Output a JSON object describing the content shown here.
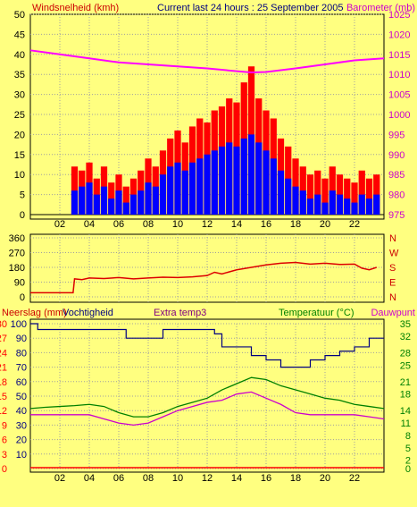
{
  "header": {
    "left_label": "Windsnelheid (kmh)",
    "center_label": "Current last 24 hours : 25 September 2005",
    "right_label": "Barometer (mb)"
  },
  "direction_labels": [
    "N",
    "W",
    "S",
    "E",
    "N"
  ],
  "bottom_header": {
    "precip_label": "Neerslag (mm)",
    "humidity_label": "Vochtigheid",
    "extra_label": "Extra temp3",
    "temp_label": "Temperatuur (°C)",
    "dew_label": "Dauwpunt"
  },
  "colors": {
    "background": "#FFFF80",
    "grid": "#A0A0A0",
    "wind_gust": "#FF0000",
    "wind_avg": "#0000FF",
    "barometer": "#FF00FF",
    "direction": "#DD0000",
    "humidity": "#000080",
    "temperature": "#008000",
    "dewpoint": "#CC00CC",
    "precip": "#FF0000",
    "left_title": "#CC0000",
    "right_title": "#CC00CC",
    "temp_title": "#008000",
    "extra_title": "#800080"
  },
  "chart_data": [
    {
      "type": "bar",
      "name": "wind",
      "x_ticks": [
        "02",
        "04",
        "06",
        "08",
        "10",
        "12",
        "14",
        "16",
        "18",
        "20",
        "22"
      ],
      "y_left_ticks": [
        "0",
        "5",
        "10",
        "15",
        "20",
        "25",
        "30",
        "35",
        "40",
        "45",
        "50"
      ],
      "y_right_ticks": [
        "975",
        "980",
        "985",
        "990",
        "995",
        "1000",
        "1005",
        "1010",
        "1015",
        "1020",
        "1025"
      ],
      "ylim_left": [
        0,
        50
      ],
      "ylim_right": [
        975,
        1025
      ],
      "xlim": [
        0,
        24
      ],
      "series": [
        {
          "name": "gust",
          "x": [
            3.0,
            3.5,
            4.0,
            4.5,
            5.0,
            5.5,
            6.0,
            6.5,
            7.0,
            7.5,
            8.0,
            8.5,
            9.0,
            9.5,
            10.0,
            10.5,
            11.0,
            11.5,
            12.0,
            12.5,
            13.0,
            13.5,
            14.0,
            14.5,
            15.0,
            15.5,
            16.0,
            16.5,
            17.0,
            17.5,
            18.0,
            18.5,
            19.0,
            19.5,
            20.0,
            20.5,
            21.0,
            21.5,
            22.0,
            22.5,
            23.0,
            23.5
          ],
          "values": [
            12,
            11,
            13,
            9,
            12,
            8,
            10,
            7,
            9,
            11,
            14,
            12,
            16,
            19,
            21,
            18,
            22,
            24,
            23,
            26,
            27,
            29,
            28,
            33,
            37,
            29,
            26,
            24,
            19,
            17,
            14,
            12,
            10,
            11,
            9,
            12,
            10,
            9,
            8,
            11,
            9,
            10
          ]
        },
        {
          "name": "avg",
          "x": [
            3.0,
            3.5,
            4.0,
            4.5,
            5.0,
            5.5,
            6.0,
            6.5,
            7.0,
            7.5,
            8.0,
            8.5,
            9.0,
            9.5,
            10.0,
            10.5,
            11.0,
            11.5,
            12.0,
            12.5,
            13.0,
            13.5,
            14.0,
            14.5,
            15.0,
            15.5,
            16.0,
            16.5,
            17.0,
            17.5,
            18.0,
            18.5,
            19.0,
            19.5,
            20.0,
            20.5,
            21.0,
            21.5,
            22.0,
            22.5,
            23.0,
            23.5
          ],
          "values": [
            6,
            7,
            8,
            5,
            7,
            4,
            6,
            3,
            5,
            6,
            8,
            7,
            10,
            12,
            13,
            11,
            13,
            14,
            15,
            16,
            17,
            18,
            17,
            19,
            20,
            18,
            16,
            14,
            11,
            9,
            7,
            6,
            4,
            5,
            3,
            6,
            5,
            4,
            3,
            5,
            4,
            5
          ]
        }
      ],
      "barometer": {
        "x": [
          0,
          2,
          4,
          6,
          8,
          10,
          12,
          14,
          15,
          16,
          18,
          20,
          22,
          24
        ],
        "values": [
          1016,
          1015,
          1014,
          1013,
          1012.5,
          1012,
          1011.5,
          1010.8,
          1010.5,
          1010.6,
          1011.5,
          1012.5,
          1013.5,
          1014
        ]
      }
    },
    {
      "type": "line",
      "name": "direction",
      "x_ticks": [],
      "y_ticks": [
        "0",
        "90",
        "180",
        "270",
        "360"
      ],
      "ylim": [
        0,
        360
      ],
      "xlim": [
        0,
        24
      ],
      "series": [
        {
          "name": "direction",
          "x": [
            0,
            2.9,
            3.0,
            3.5,
            4,
            5,
            6,
            7,
            8,
            9,
            10,
            11,
            12,
            12.5,
            13,
            14,
            15,
            16,
            17,
            18,
            19,
            20,
            21,
            22,
            22.5,
            23,
            23.5
          ],
          "values": [
            25,
            25,
            110,
            105,
            115,
            112,
            118,
            110,
            115,
            120,
            118,
            122,
            130,
            150,
            140,
            165,
            180,
            195,
            205,
            210,
            200,
            205,
            198,
            200,
            175,
            165,
            180
          ]
        }
      ]
    },
    {
      "type": "line",
      "name": "temperature-humidity",
      "x_ticks": [
        "02",
        "04",
        "06",
        "08",
        "10",
        "12",
        "14",
        "16",
        "18",
        "20",
        "22"
      ],
      "y_left_ticks": [
        "0",
        "3",
        "6",
        "9",
        "12",
        "15",
        "18",
        "21",
        "24",
        "27",
        "30"
      ],
      "y_humidity_ticks": [
        "10",
        "20",
        "30",
        "40",
        "50",
        "60",
        "70",
        "80",
        "90",
        "100"
      ],
      "y_right_ticks": [
        "0",
        "2",
        "5",
        "8",
        "11",
        "14",
        "18",
        "21",
        "25",
        "28",
        "32",
        "35"
      ],
      "ylim_humidity": [
        0,
        100
      ],
      "ylim_temp": [
        0,
        35
      ],
      "xlim": [
        0,
        24
      ],
      "series": [
        {
          "name": "humidity",
          "x": [
            0,
            0.5,
            2,
            3.5,
            5,
            6,
            6.5,
            8,
            9,
            10,
            10.5,
            11,
            12,
            12.5,
            13,
            14,
            15,
            16,
            17,
            18,
            19,
            20,
            21,
            22,
            23,
            24
          ],
          "values": [
            100,
            96,
            96,
            96,
            96,
            96,
            90,
            90,
            96,
            96,
            96,
            96,
            96,
            93,
            84,
            84,
            78,
            75,
            70,
            70,
            75,
            78,
            81,
            84,
            90,
            90
          ]
        },
        {
          "name": "temperature",
          "x": [
            0,
            1,
            2,
            3,
            4,
            5,
            6,
            7,
            8,
            9,
            10,
            11,
            12,
            13,
            14,
            15,
            16,
            17,
            18,
            19,
            20,
            21,
            22,
            23,
            24
          ],
          "values": [
            14.5,
            14.8,
            15.0,
            15.2,
            15.5,
            15.0,
            13.5,
            12.5,
            12.5,
            13.5,
            15.0,
            16.0,
            17.0,
            19.0,
            20.5,
            22.0,
            21.5,
            20.0,
            19.0,
            18.0,
            17.0,
            16.5,
            15.5,
            15.0,
            14.5
          ]
        },
        {
          "name": "dewpoint",
          "x": [
            0,
            1,
            2,
            3,
            4,
            5,
            6,
            7,
            8,
            9,
            10,
            11,
            12,
            13,
            14,
            15,
            16,
            17,
            18,
            19,
            20,
            21,
            22,
            23,
            24
          ],
          "values": [
            13.0,
            13.0,
            13.0,
            13.0,
            13.0,
            12.0,
            11.0,
            10.5,
            11.0,
            12.5,
            14.0,
            15.0,
            16.0,
            16.5,
            18.0,
            18.5,
            17.0,
            15.5,
            13.5,
            13.0,
            13.0,
            13.0,
            13.0,
            12.5,
            12.0
          ]
        },
        {
          "name": "precip",
          "x": [
            0,
            24
          ],
          "values": [
            0,
            0
          ]
        }
      ]
    }
  ]
}
